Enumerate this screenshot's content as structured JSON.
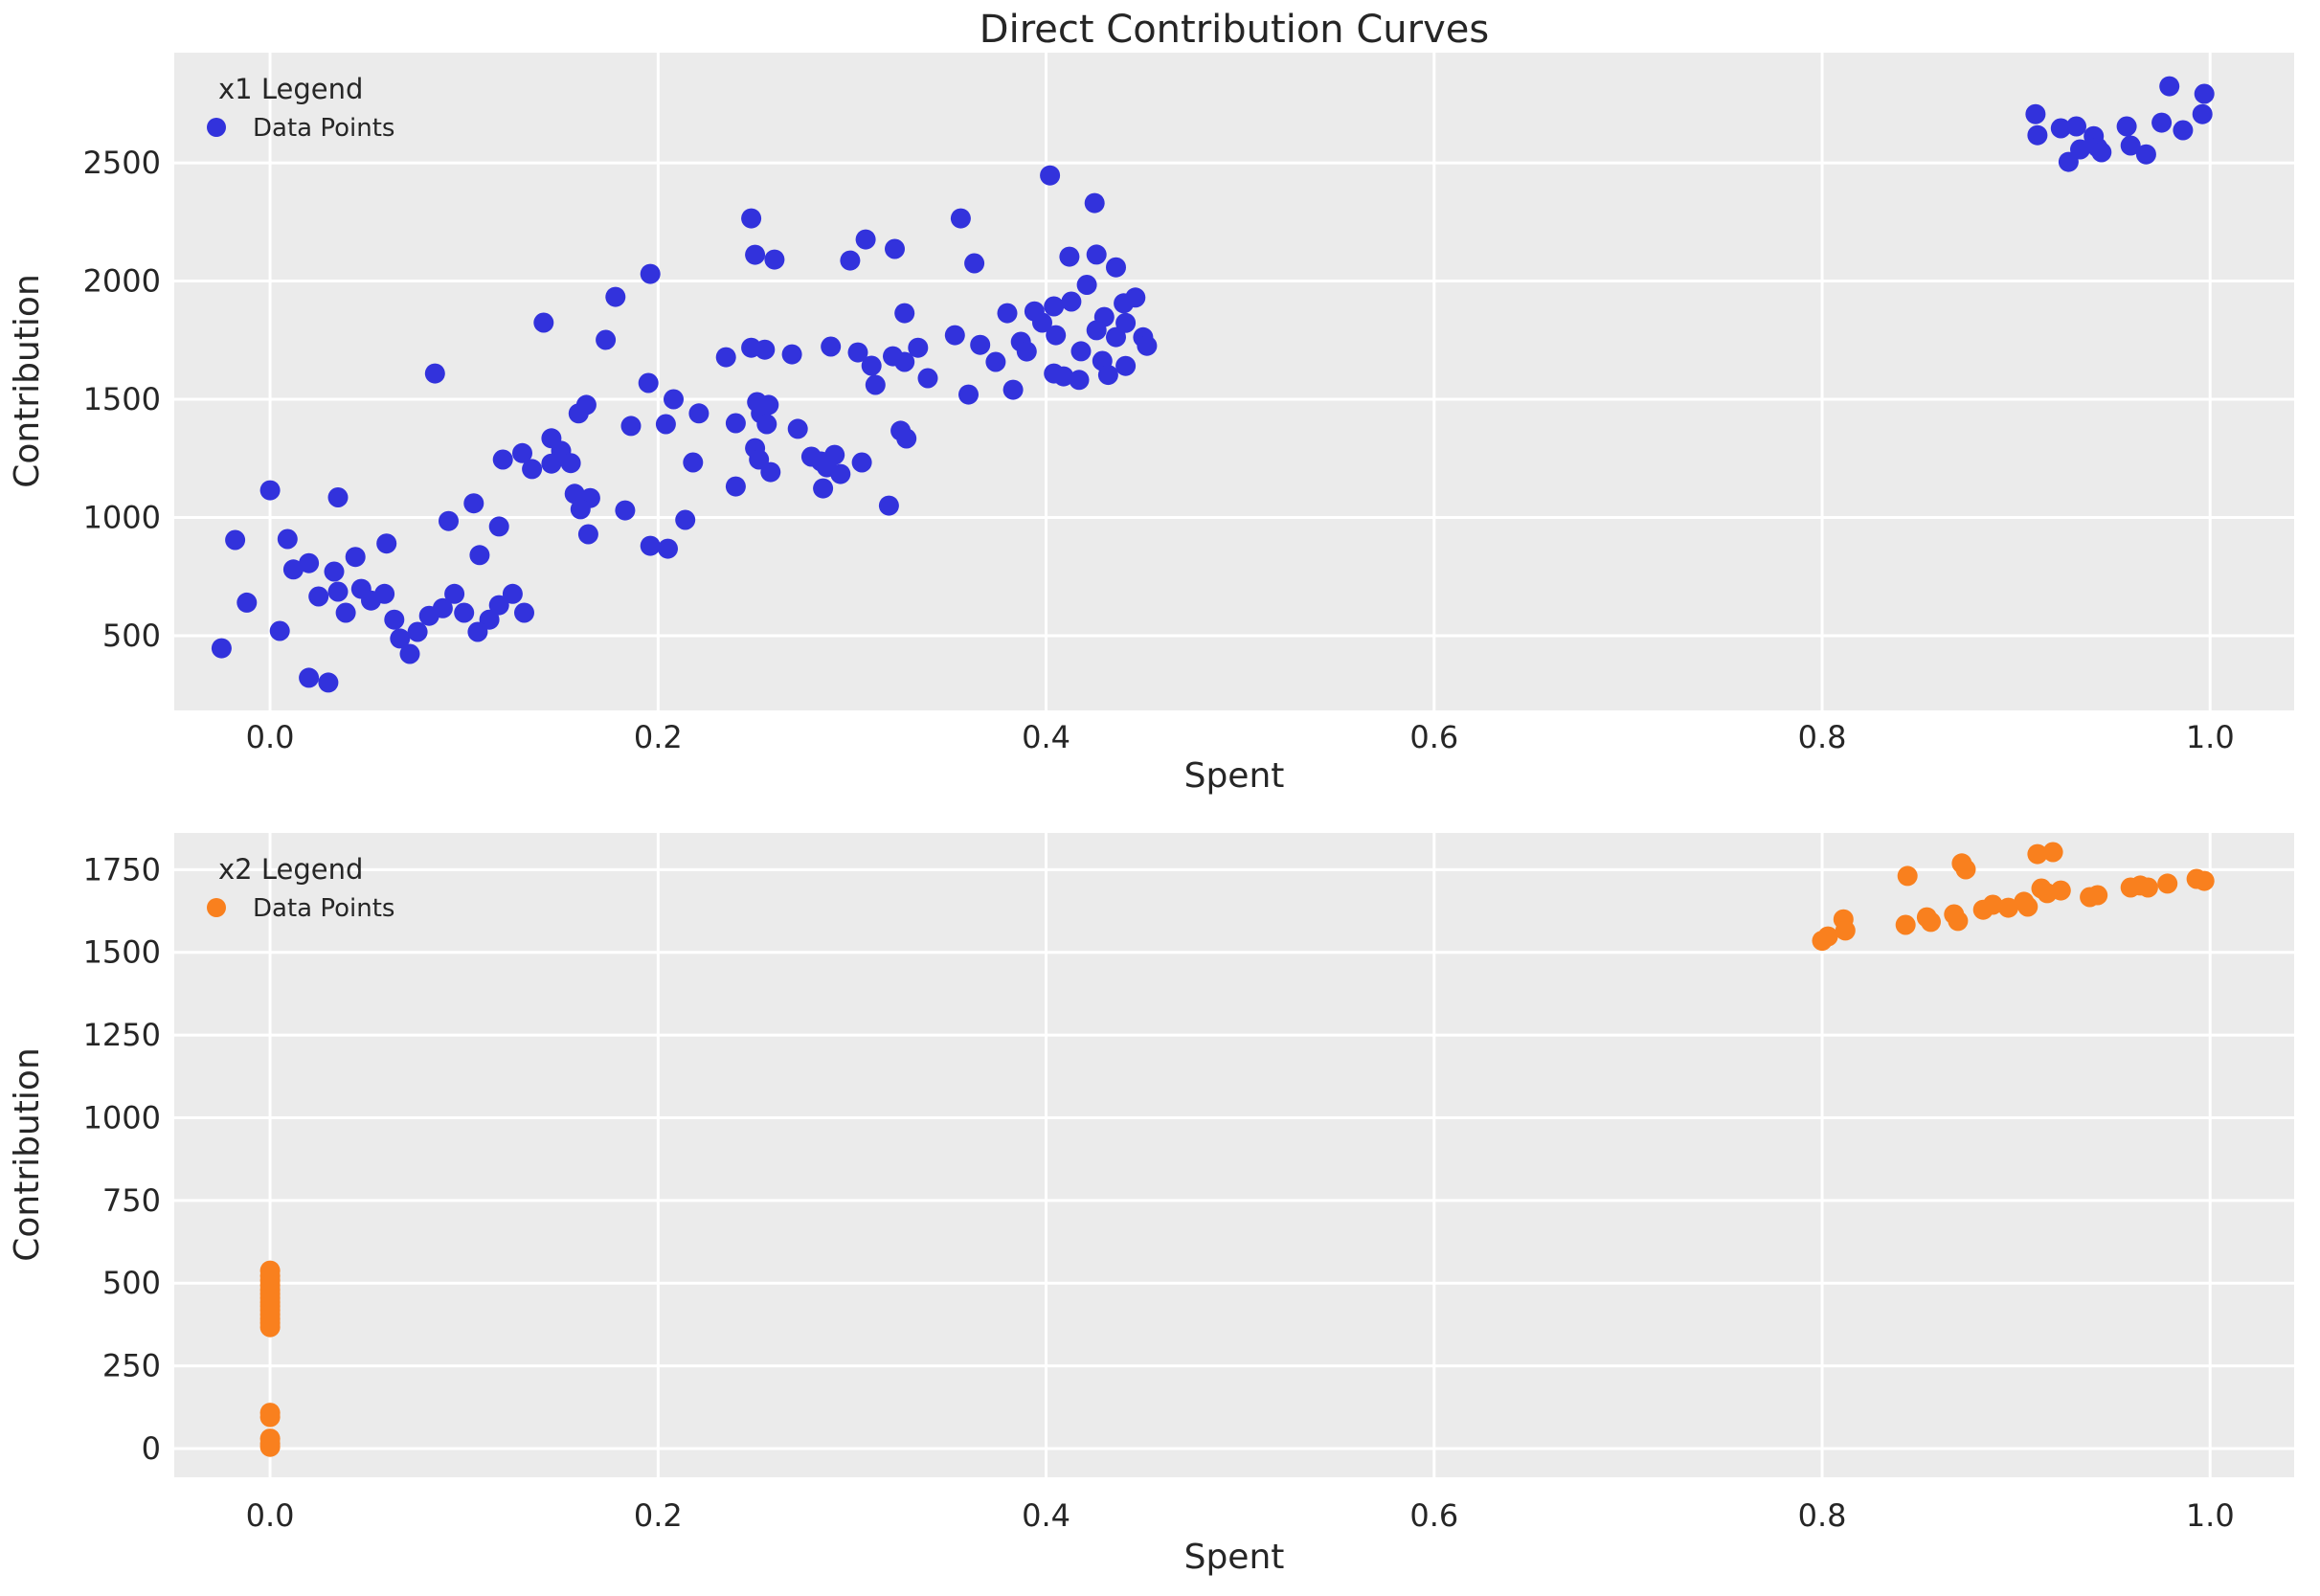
{
  "figure": {
    "title": "Direct Contribution Curves"
  },
  "colors": {
    "plot_background": "#ebebeb",
    "grid": "#ffffff",
    "text": "#262626",
    "series_blue": "#3232dc",
    "series_orange": "#f9801e"
  },
  "chart_data": [
    {
      "type": "scatter",
      "title": "Direct Contribution Curves",
      "xlabel": "Spent",
      "ylabel": "Contribution",
      "legend": {
        "title": "x1 Legend",
        "label": "Data Points",
        "position": "upper left"
      },
      "grid": true,
      "x_tick_labels": [
        "0.0",
        "0.2",
        "0.4",
        "0.6",
        "0.8",
        "1.0"
      ],
      "x_tick_values": [
        0.0,
        0.2,
        0.4,
        0.6,
        0.8,
        1.0
      ],
      "y_tick_labels": [
        "500",
        "1000",
        "1500",
        "2000",
        "2500"
      ],
      "y_tick_values": [
        500,
        1000,
        1500,
        2000,
        2500
      ],
      "xlim": [
        -0.0494,
        1.0433
      ],
      "ylim": [
        184,
        2966
      ],
      "series": [
        {
          "name": "Data Points",
          "color": "#3232dc",
          "points": [
            [
              0.91,
              2706
            ],
            [
              0.911,
              2617
            ],
            [
              0.923,
              2646
            ],
            [
              0.931,
              2654
            ],
            [
              0.927,
              2504
            ],
            [
              0.933,
              2557
            ],
            [
              0.94,
              2613
            ],
            [
              0.942,
              2565
            ],
            [
              0.944,
              2545
            ],
            [
              0.957,
              2654
            ],
            [
              0.959,
              2573
            ],
            [
              0.967,
              2536
            ],
            [
              0.975,
              2670
            ],
            [
              0.979,
              2824
            ],
            [
              0.986,
              2638
            ],
            [
              0.997,
              2792
            ],
            [
              0.996,
              2706
            ],
            [
              0.402,
              2447
            ],
            [
              0.425,
              2330
            ],
            [
              0.248,
              2265
            ],
            [
              0.356,
              2265
            ],
            [
              0.307,
              2176
            ],
            [
              0.25,
              2111
            ],
            [
              0.26,
              2091
            ],
            [
              0.299,
              2087
            ],
            [
              0.322,
              2136
            ],
            [
              0.196,
              2030
            ],
            [
              0.363,
              2075
            ],
            [
              0.412,
              2103
            ],
            [
              0.426,
              2112
            ],
            [
              0.436,
              2058
            ],
            [
              0.178,
              1933
            ],
            [
              0.327,
              1864
            ],
            [
              0.38,
              1864
            ],
            [
              0.394,
              1872
            ],
            [
              0.398,
              1824
            ],
            [
              0.404,
              1893
            ],
            [
              0.141,
              1824
            ],
            [
              0.413,
              1913
            ],
            [
              0.421,
              1984
            ],
            [
              0.44,
              1906
            ],
            [
              0.446,
              1930
            ],
            [
              0.173,
              1751
            ],
            [
              0.235,
              1678
            ],
            [
              0.248,
              1718
            ],
            [
              0.255,
              1710
            ],
            [
              0.269,
              1690
            ],
            [
              0.289,
              1723
            ],
            [
              0.303,
              1698
            ],
            [
              0.31,
              1642
            ],
            [
              0.321,
              1682
            ],
            [
              0.327,
              1658
            ],
            [
              0.334,
              1718
            ],
            [
              0.339,
              1589
            ],
            [
              0.353,
              1771
            ],
            [
              0.366,
              1730
            ],
            [
              0.374,
              1658
            ],
            [
              0.387,
              1743
            ],
            [
              0.39,
              1702
            ],
            [
              0.405,
              1771
            ],
            [
              0.43,
              1848
            ],
            [
              0.426,
              1792
            ],
            [
              0.436,
              1763
            ],
            [
              0.441,
              1823
            ],
            [
              0.45,
              1762
            ],
            [
              0.418,
              1703
            ],
            [
              0.429,
              1662
            ],
            [
              0.441,
              1641
            ],
            [
              0.452,
              1726
            ],
            [
              0.085,
              1609
            ],
            [
              0.195,
              1569
            ],
            [
              0.208,
              1500
            ],
            [
              0.312,
              1561
            ],
            [
              0.36,
              1520
            ],
            [
              0.383,
              1540
            ],
            [
              0.409,
              1597
            ],
            [
              0.417,
              1582
            ],
            [
              0.432,
              1603
            ],
            [
              0.404,
              1609
            ],
            [
              0.251,
              1488
            ],
            [
              0.163,
              1476
            ],
            [
              0.159,
              1440
            ],
            [
              0.186,
              1387
            ],
            [
              0.204,
              1395
            ],
            [
              0.221,
              1440
            ],
            [
              0.24,
              1399
            ],
            [
              0.253,
              1440
            ],
            [
              0.256,
              1395
            ],
            [
              0.257,
              1476
            ],
            [
              0.272,
              1375
            ],
            [
              0.325,
              1367
            ],
            [
              0.145,
              1335
            ],
            [
              0.279,
              1257
            ],
            [
              0.284,
              1237
            ],
            [
              0.287,
              1212
            ],
            [
              0.291,
              1265
            ],
            [
              0.294,
              1184
            ],
            [
              0.305,
              1233
            ],
            [
              0.328,
              1334
            ],
            [
              0.25,
              1293
            ],
            [
              0.252,
              1245
            ],
            [
              0.258,
              1192
            ],
            [
              0.218,
              1233
            ],
            [
              0.24,
              1131
            ],
            [
              0.285,
              1123
            ],
            [
              0.12,
              1245
            ],
            [
              0.13,
              1272
            ],
            [
              0.135,
              1205
            ],
            [
              0.15,
              1282
            ],
            [
              0.155,
              1230
            ],
            [
              0.145,
              1228
            ],
            [
              0.157,
              1100
            ],
            [
              0.165,
              1082
            ],
            [
              0.0,
              1115
            ],
            [
              0.035,
              1085
            ],
            [
              0.183,
              1030
            ],
            [
              0.214,
              990
            ],
            [
              0.319,
              1050
            ],
            [
              0.164,
              929
            ],
            [
              0.105,
              1060
            ],
            [
              0.16,
              1035
            ],
            [
              0.092,
              985
            ],
            [
              0.118,
              962
            ],
            [
              0.196,
              880
            ],
            [
              0.205,
              868
            ],
            [
              -0.018,
              905
            ],
            [
              0.009,
              909
            ],
            [
              0.012,
              780
            ],
            [
              0.02,
              807
            ],
            [
              0.033,
              771
            ],
            [
              0.044,
              833
            ],
            [
              0.108,
              841
            ],
            [
              0.06,
              890
            ],
            [
              0.025,
              666
            ],
            [
              0.035,
              686
            ],
            [
              0.039,
              597
            ],
            [
              0.047,
              698
            ],
            [
              0.052,
              649
            ],
            [
              0.059,
              677
            ],
            [
              0.064,
              568
            ],
            [
              0.082,
              584
            ],
            [
              0.089,
              616
            ],
            [
              0.095,
              677
            ],
            [
              0.1,
              597
            ],
            [
              0.113,
              568
            ],
            [
              0.118,
              629
            ],
            [
              0.125,
              677
            ],
            [
              0.131,
              597
            ],
            [
              -0.012,
              640
            ],
            [
              0.067,
              488
            ],
            [
              0.072,
              423
            ],
            [
              0.076,
              516
            ],
            [
              0.107,
              516
            ],
            [
              0.005,
              520
            ],
            [
              0.02,
              322
            ],
            [
              0.03,
              302
            ],
            [
              -0.025,
              447
            ]
          ]
        }
      ]
    },
    {
      "type": "scatter",
      "title": "",
      "xlabel": "Spent",
      "ylabel": "Contribution",
      "legend": {
        "title": "x2 Legend",
        "label": "Data Points",
        "position": "upper left"
      },
      "grid": true,
      "x_tick_labels": [
        "0.0",
        "0.2",
        "0.4",
        "0.6",
        "0.8",
        "1.0"
      ],
      "x_tick_values": [
        0.0,
        0.2,
        0.4,
        0.6,
        0.8,
        1.0
      ],
      "y_tick_labels": [
        "0",
        "250",
        "500",
        "750",
        "1000",
        "1250",
        "1500",
        "1750"
      ],
      "y_tick_values": [
        0,
        250,
        500,
        750,
        1000,
        1250,
        1500,
        1750
      ],
      "xlim": [
        -0.0494,
        1.0433
      ],
      "ylim": [
        -87,
        1861
      ],
      "series": [
        {
          "name": "Data Points",
          "color": "#f9801e",
          "points": [
            [
              0.0,
              538
            ],
            [
              0.0,
              522
            ],
            [
              0.0,
              508
            ],
            [
              0.0,
              494
            ],
            [
              0.0,
              480
            ],
            [
              0.0,
              468
            ],
            [
              0.0,
              455
            ],
            [
              0.0,
              442
            ],
            [
              0.0,
              430
            ],
            [
              0.0,
              418
            ],
            [
              0.0,
              405
            ],
            [
              0.0,
              392
            ],
            [
              0.0,
              380
            ],
            [
              0.0,
              367
            ],
            [
              0.0,
              108
            ],
            [
              0.0,
              95
            ],
            [
              0.0,
              30
            ],
            [
              0.0,
              15
            ],
            [
              0.0,
              5
            ],
            [
              0.8,
              1535
            ],
            [
              0.803,
              1548
            ],
            [
              0.811,
              1600
            ],
            [
              0.812,
              1566
            ],
            [
              0.843,
              1583
            ],
            [
              0.844,
              1731
            ],
            [
              0.854,
              1606
            ],
            [
              0.856,
              1592
            ],
            [
              0.868,
              1615
            ],
            [
              0.87,
              1595
            ],
            [
              0.872,
              1769
            ],
            [
              0.874,
              1751
            ],
            [
              0.883,
              1629
            ],
            [
              0.888,
              1644
            ],
            [
              0.896,
              1635
            ],
            [
              0.904,
              1653
            ],
            [
              0.906,
              1638
            ],
            [
              0.911,
              1797
            ],
            [
              0.913,
              1693
            ],
            [
              0.916,
              1679
            ],
            [
              0.919,
              1803
            ],
            [
              0.923,
              1687
            ],
            [
              0.938,
              1667
            ],
            [
              0.942,
              1673
            ],
            [
              0.959,
              1696
            ],
            [
              0.964,
              1702
            ],
            [
              0.968,
              1696
            ],
            [
              0.978,
              1708
            ],
            [
              0.993,
              1722
            ],
            [
              0.997,
              1716
            ]
          ]
        }
      ]
    }
  ]
}
